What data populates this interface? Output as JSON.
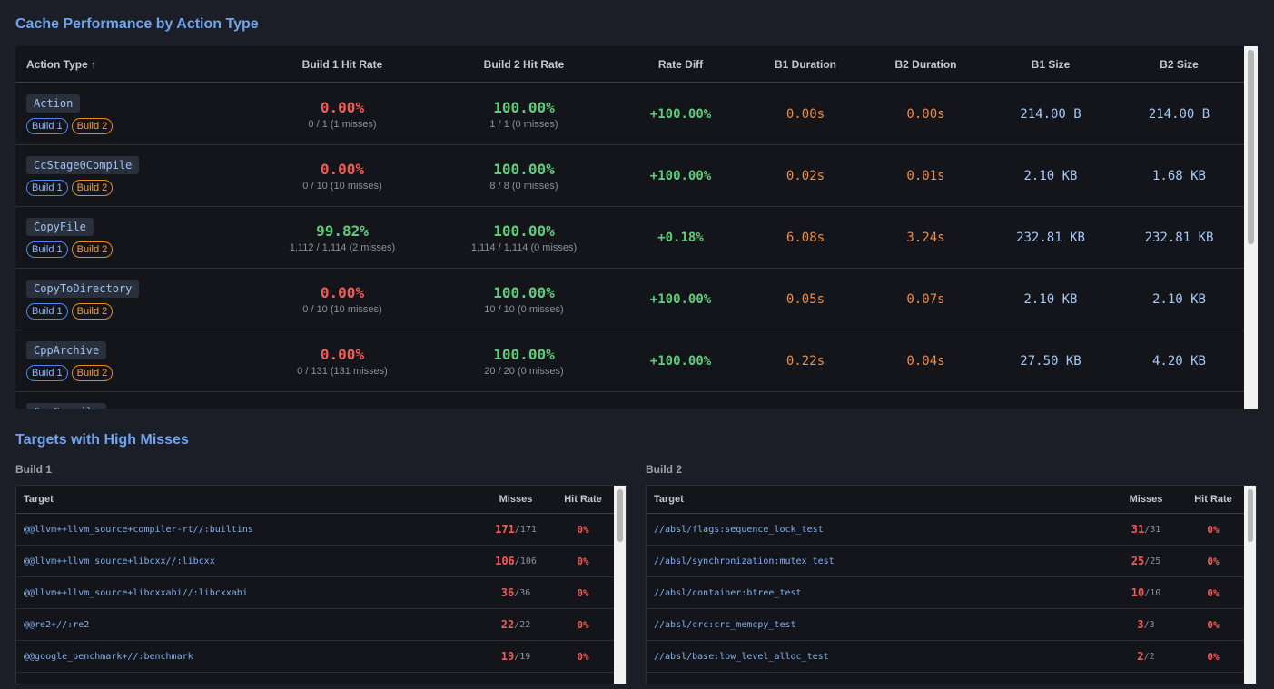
{
  "cache_performance": {
    "title": "Cache Performance by Action Type",
    "columns": [
      "Action Type ↑",
      "Build 1 Hit Rate",
      "Build 2 Hit Rate",
      "Rate Diff",
      "B1 Duration",
      "B2 Duration",
      "B1 Size",
      "B2 Size"
    ],
    "badge_build1": "Build 1",
    "badge_build2": "Build 2",
    "rows": [
      {
        "action": "Action",
        "b1_rate": "0.00%",
        "b1_sub": "0 / 1 (1 misses)",
        "b2_rate": "100.00%",
        "b2_sub": "1 / 1 (0 misses)",
        "diff": "+100.00%",
        "b1_dur": "0.00s",
        "b2_dur": "0.00s",
        "b1_size": "214.00 B",
        "b2_size": "214.00 B"
      },
      {
        "action": "CcStage0Compile",
        "b1_rate": "0.00%",
        "b1_sub": "0 / 10 (10 misses)",
        "b2_rate": "100.00%",
        "b2_sub": "8 / 8 (0 misses)",
        "diff": "+100.00%",
        "b1_dur": "0.02s",
        "b2_dur": "0.01s",
        "b1_size": "2.10 KB",
        "b2_size": "1.68 KB"
      },
      {
        "action": "CopyFile",
        "b1_rate": "99.82%",
        "b1_sub": "1,112 / 1,114 (2 misses)",
        "b2_rate": "100.00%",
        "b2_sub": "1,114 / 1,114 (0 misses)",
        "diff": "+0.18%",
        "b1_dur": "6.08s",
        "b2_dur": "3.24s",
        "b1_size": "232.81 KB",
        "b2_size": "232.81 KB"
      },
      {
        "action": "CopyToDirectory",
        "b1_rate": "0.00%",
        "b1_sub": "0 / 10 (10 misses)",
        "b2_rate": "100.00%",
        "b2_sub": "10 / 10 (0 misses)",
        "diff": "+100.00%",
        "b1_dur": "0.05s",
        "b2_dur": "0.07s",
        "b1_size": "2.10 KB",
        "b2_size": "2.10 KB"
      },
      {
        "action": "CppArchive",
        "b1_rate": "0.00%",
        "b1_sub": "0 / 131 (131 misses)",
        "b2_rate": "100.00%",
        "b2_sub": "20 / 20 (0 misses)",
        "diff": "+100.00%",
        "b1_dur": "0.22s",
        "b2_dur": "0.04s",
        "b1_size": "27.50 KB",
        "b2_size": "4.20 KB"
      }
    ],
    "partial_row_action": "CppCompile"
  },
  "high_misses": {
    "title": "Targets with High Misses",
    "build1": {
      "label": "Build 1",
      "columns": [
        "Target",
        "Misses",
        "Hit Rate"
      ],
      "rows": [
        {
          "target": "@@llvm++llvm_source+compiler-rt//:builtins",
          "misses": "171",
          "total": "/171",
          "rate": "0%"
        },
        {
          "target": "@@llvm++llvm_source+libcxx//:libcxx",
          "misses": "106",
          "total": "/106",
          "rate": "0%"
        },
        {
          "target": "@@llvm++llvm_source+libcxxabi//:libcxxabi",
          "misses": "36",
          "total": "/36",
          "rate": "0%"
        },
        {
          "target": "@@re2+//:re2",
          "misses": "22",
          "total": "/22",
          "rate": "0%"
        },
        {
          "target": "@@google_benchmark+//:benchmark",
          "misses": "19",
          "total": "/19",
          "rate": "0%"
        }
      ]
    },
    "build2": {
      "label": "Build 2",
      "columns": [
        "Target",
        "Misses",
        "Hit Rate"
      ],
      "rows": [
        {
          "target": "//absl/flags:sequence_lock_test",
          "misses": "31",
          "total": "/31",
          "rate": "0%"
        },
        {
          "target": "//absl/synchronization:mutex_test",
          "misses": "25",
          "total": "/25",
          "rate": "0%"
        },
        {
          "target": "//absl/container:btree_test",
          "misses": "10",
          "total": "/10",
          "rate": "0%"
        },
        {
          "target": "//absl/crc:crc_memcpy_test",
          "misses": "3",
          "total": "/3",
          "rate": "0%"
        },
        {
          "target": "//absl/base:low_level_alloc_test",
          "misses": "2",
          "total": "/2",
          "rate": "0%"
        }
      ]
    }
  },
  "colors": {
    "background": "#1b1e26",
    "panel": "#13151a",
    "accent_blue": "#6ea4ee",
    "miss_red": "#f25b55",
    "hit_green": "#5fcc7c",
    "duration_orange": "#ec8d4a",
    "build2_orange": "#e28d1c"
  }
}
